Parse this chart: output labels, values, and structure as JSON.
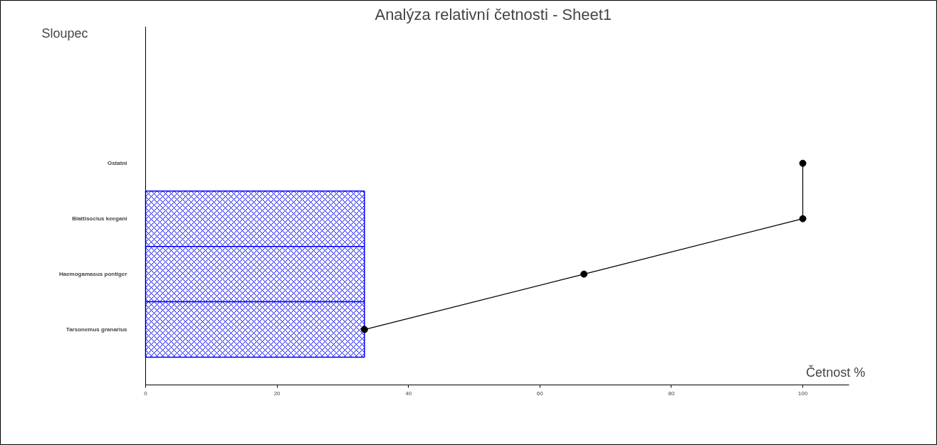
{
  "chart_data": {
    "type": "bar",
    "orientation": "horizontal",
    "title": "Analýza relativní četnosti - Sheet1",
    "xlabel": "Četnost %",
    "annotations": [
      "Sloupec"
    ],
    "categories": [
      "Ostatni",
      "Blattisocius keegani",
      "Haemogamasus pontiger",
      "Tarsonemus granarius"
    ],
    "series": [
      {
        "color": "#0000ff",
        "values": [
          0,
          33.3,
          33.3,
          33.3
        ]
      },
      {
        "type": "line",
        "color": "#000000",
        "values": [
          100,
          100,
          66.7,
          33.3
        ],
        "marker": "circle",
        "line_style": "solid"
      }
    ],
    "xlim": [
      0,
      107
    ],
    "xticks": [
      0,
      20,
      40,
      60,
      80,
      100
    ],
    "grid": false
  }
}
